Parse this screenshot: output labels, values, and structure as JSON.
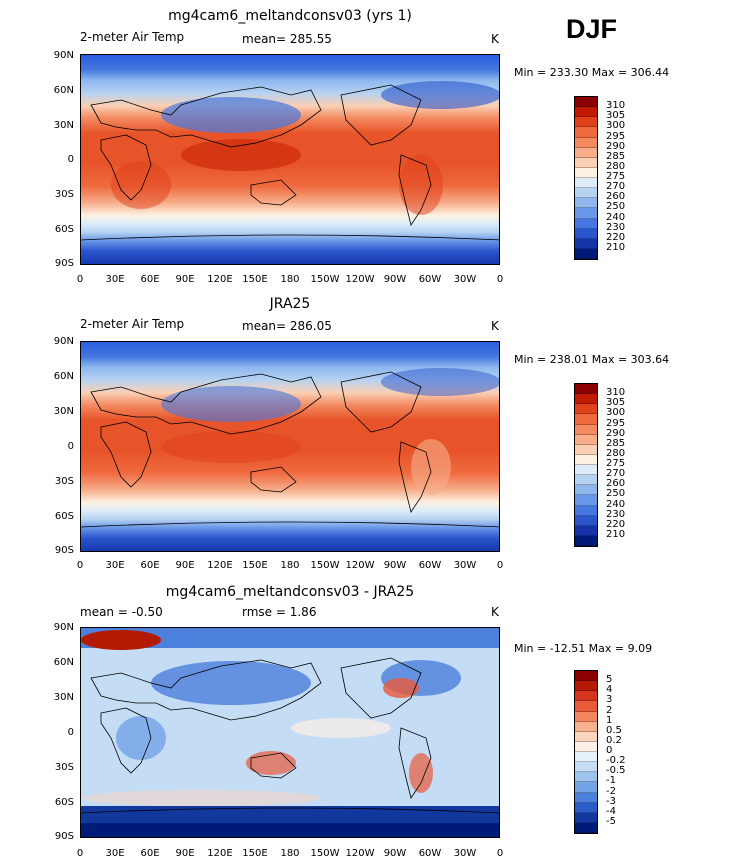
{
  "season": "DJF",
  "chart_data": [
    {
      "type": "heatmap",
      "title": "mg4cam6_meltandconsv03 (yrs 1)",
      "left_label": "2-meter Air Temp",
      "stat_text": "mean=  285.55",
      "units": "K",
      "minmax": "Min = 233.30 Max = 306.44",
      "colorbar_levels": [
        "310",
        "305",
        "300",
        "295",
        "290",
        "285",
        "280",
        "275",
        "270",
        "260",
        "250",
        "240",
        "230",
        "220",
        "210"
      ],
      "colorbar_colors": [
        "#8b0000",
        "#c11a00",
        "#e0401a",
        "#ef6a3f",
        "#f48a60",
        "#f7ad8a",
        "#fad0b5",
        "#fdf0e2",
        "#dcecfa",
        "#b6d2f2",
        "#8eb7ee",
        "#6a97e8",
        "#4677e0",
        "#2a55cc",
        "#1434a8",
        "#001a7a"
      ],
      "xticks": [
        "0",
        "30E",
        "60E",
        "90E",
        "120E",
        "150E",
        "180",
        "150W",
        "120W",
        "90W",
        "60W",
        "30W",
        "0"
      ],
      "yticks": [
        "90N",
        "60N",
        "30N",
        "0",
        "30S",
        "60S",
        "90S"
      ]
    },
    {
      "type": "heatmap",
      "title": "JRA25",
      "left_label": "2-meter Air Temp",
      "stat_text": "mean=  286.05",
      "units": "K",
      "minmax": "Min = 238.01 Max = 303.64",
      "colorbar_levels": [
        "310",
        "305",
        "300",
        "295",
        "290",
        "285",
        "280",
        "275",
        "270",
        "260",
        "250",
        "240",
        "230",
        "220",
        "210"
      ],
      "colorbar_colors": [
        "#8b0000",
        "#c11a00",
        "#e0401a",
        "#ef6a3f",
        "#f48a60",
        "#f7ad8a",
        "#fad0b5",
        "#fdf0e2",
        "#dcecfa",
        "#b6d2f2",
        "#8eb7ee",
        "#6a97e8",
        "#4677e0",
        "#2a55cc",
        "#1434a8",
        "#001a7a"
      ],
      "xticks": [
        "0",
        "30E",
        "60E",
        "90E",
        "120E",
        "150E",
        "180",
        "150W",
        "120W",
        "90W",
        "60W",
        "30W",
        "0"
      ],
      "yticks": [
        "90N",
        "60N",
        "30N",
        "0",
        "30S",
        "60S",
        "90S"
      ]
    },
    {
      "type": "heatmap",
      "title": "mg4cam6_meltandconsv03 - JRA25",
      "left_label": "mean =   -0.50",
      "stat_text": "rmse =    1.86",
      "units": "K",
      "minmax": "Min = -12.51 Max =   9.09",
      "colorbar_levels": [
        "5",
        "4",
        "3",
        "2",
        "1",
        "0.5",
        "0.2",
        "0",
        "-0.2",
        "-0.5",
        "-1",
        "-2",
        "-3",
        "-4",
        "-5"
      ],
      "colorbar_colors": [
        "#8b0000",
        "#b31a00",
        "#d4341c",
        "#ea5a3a",
        "#f48660",
        "#f8b08e",
        "#fbd4bd",
        "#fdf0e6",
        "#e4f0fb",
        "#c4dcf4",
        "#9cc2ee",
        "#74a2e6",
        "#4c80dc",
        "#2a5cc8",
        "#12389e",
        "#001a78"
      ],
      "xticks": [
        "0",
        "30E",
        "60E",
        "90E",
        "120E",
        "150E",
        "180",
        "150W",
        "120W",
        "90W",
        "60W",
        "30W",
        "0"
      ],
      "yticks": [
        "90N",
        "60N",
        "30N",
        "0",
        "30S",
        "60S",
        "90S"
      ]
    }
  ]
}
